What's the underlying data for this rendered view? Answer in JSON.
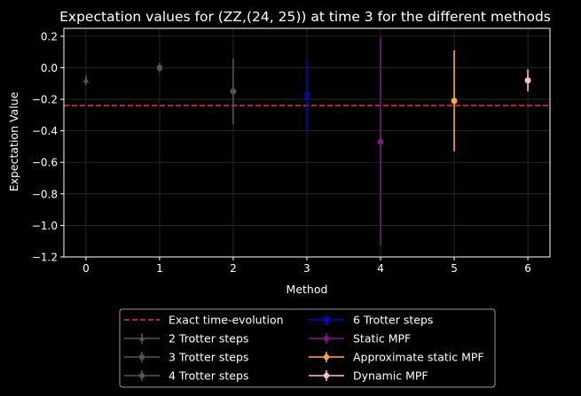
{
  "chart_data": {
    "type": "scatter",
    "title": "Expectation values for (ZZ,(24, 25)) at time 3 for the different methods",
    "xlabel": "Method",
    "ylabel": "Expectation Value",
    "xlim": [
      -0.3,
      6.3
    ],
    "ylim": [
      -1.2,
      0.25
    ],
    "xticks": [
      0,
      1,
      2,
      3,
      4,
      5,
      6
    ],
    "yticks": [
      0.2,
      0.0,
      -0.2,
      -0.4,
      -0.6,
      -0.8,
      -1.0,
      -1.2
    ],
    "ytick_labels": [
      "0.2",
      "0.0",
      "−0.2",
      "−0.4",
      "−0.6",
      "−0.8",
      "−1.0",
      "−1.2"
    ],
    "grid": true,
    "exact": {
      "name": "Exact time-evolution",
      "value": -0.24,
      "color": "#d62728"
    },
    "series": [
      {
        "name": "2 Trotter steps",
        "x": 0,
        "y": -0.08,
        "err": 0.03,
        "color": "#555555",
        "marker": "triangle"
      },
      {
        "name": "3 Trotter steps",
        "x": 1,
        "y": 0.0,
        "err": 0.03,
        "color": "#555555",
        "marker": "square"
      },
      {
        "name": "4 Trotter steps",
        "x": 2,
        "y": -0.15,
        "err": 0.21,
        "color": "#555555",
        "marker": "circle"
      },
      {
        "name": "6 Trotter steps",
        "x": 3,
        "y": -0.18,
        "err": 0.22,
        "color": "#0b0bbd",
        "marker": "x"
      },
      {
        "name": "Static MPF",
        "x": 4,
        "y": -0.47,
        "err": 0.66,
        "color": "#7a1a7a",
        "marker": "circle"
      },
      {
        "name": "Approximate static MPF",
        "x": 5,
        "y": -0.21,
        "err": 0.32,
        "color": "#ffa64d",
        "marker": "circle"
      },
      {
        "name": "Dynamic MPF",
        "x": 6,
        "y": -0.08,
        "err": 0.07,
        "color": "#ffc0cb",
        "marker": "circle"
      }
    ],
    "legend": {
      "location": "bottom-center",
      "columns": [
        [
          "Exact time-evolution",
          "2 Trotter steps",
          "3 Trotter steps",
          "4 Trotter steps"
        ],
        [
          "6 Trotter steps",
          "Static MPF",
          "Approximate static MPF",
          "Dynamic MPF"
        ]
      ]
    }
  }
}
